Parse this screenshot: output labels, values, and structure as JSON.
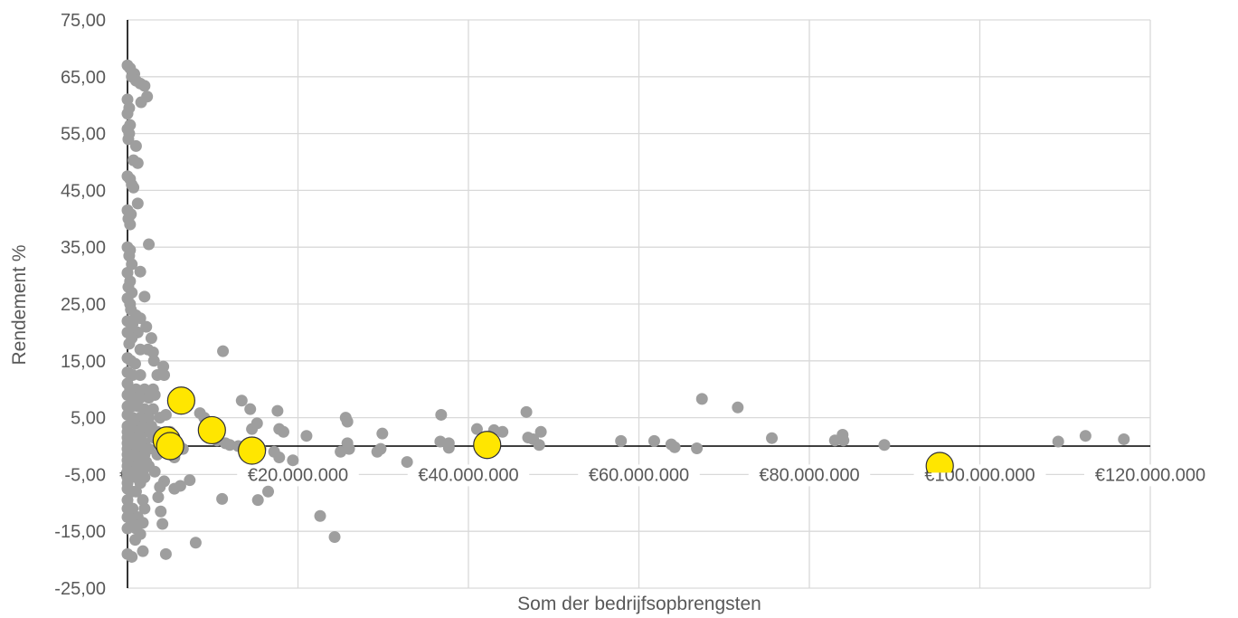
{
  "chart_data": {
    "type": "scatter",
    "title": "",
    "xlabel": "Som der bedrijfsopbrengsten",
    "ylabel": "Rendement %",
    "xlim": [
      0,
      120000000
    ],
    "ylim": [
      -25,
      75
    ],
    "x_ticks": [
      0,
      20000000,
      40000000,
      60000000,
      80000000,
      100000000,
      120000000
    ],
    "x_tick_labels": [
      "€-",
      "€20.000.000",
      "€40.000.000",
      "€60.000.000",
      "€80.000.000",
      "€100.000.000",
      "€120.000.000"
    ],
    "y_ticks": [
      -25,
      -15,
      -5,
      5,
      15,
      25,
      35,
      45,
      55,
      65,
      75
    ],
    "y_tick_labels": [
      "-25,00",
      "-15,00",
      "-5,00",
      "5,00",
      "15,00",
      "25,00",
      "35,00",
      "45,00",
      "55,00",
      "65,00",
      "75,00"
    ],
    "grid": true,
    "legend": "none",
    "colors": {
      "series_gray": "#9e9e9e",
      "highlight": "#ffe600",
      "highlight_stroke": "#2e2e38",
      "grid": "#d9d9d9",
      "axis": "#000000"
    },
    "series": [
      {
        "color": "#9e9e9e",
        "points": [
          [
            0,
            67
          ],
          [
            300000,
            66.5
          ],
          [
            800000,
            65.5
          ],
          [
            500000,
            65
          ],
          [
            1000000,
            64.3
          ],
          [
            1500000,
            63.8
          ],
          [
            2000000,
            63.4
          ],
          [
            2300000,
            61.5
          ],
          [
            1600000,
            60.5
          ],
          [
            0,
            61
          ],
          [
            200000,
            59.5
          ],
          [
            0,
            58.5
          ],
          [
            300000,
            56.5
          ],
          [
            0,
            55.8
          ],
          [
            200000,
            55
          ],
          [
            100000,
            54
          ],
          [
            1000000,
            52.8
          ],
          [
            700000,
            50.3
          ],
          [
            1200000,
            49.8
          ],
          [
            0,
            47.5
          ],
          [
            300000,
            47
          ],
          [
            500000,
            46
          ],
          [
            700000,
            45.5
          ],
          [
            1200000,
            42.7
          ],
          [
            0,
            41.5
          ],
          [
            400000,
            40.8
          ],
          [
            100000,
            40
          ],
          [
            300000,
            39
          ],
          [
            2500000,
            35.5
          ],
          [
            0,
            35
          ],
          [
            300000,
            34.5
          ],
          [
            200000,
            33.5
          ],
          [
            500000,
            32
          ],
          [
            1500000,
            30.7
          ],
          [
            0,
            30.5
          ],
          [
            300000,
            29
          ],
          [
            100000,
            28
          ],
          [
            500000,
            27
          ],
          [
            2000000,
            26.3
          ],
          [
            0,
            26
          ],
          [
            300000,
            25
          ],
          [
            400000,
            24
          ],
          [
            1000000,
            23
          ],
          [
            1500000,
            22.5
          ],
          [
            0,
            22
          ],
          [
            600000,
            21.5
          ],
          [
            2200000,
            21
          ],
          [
            1200000,
            20
          ],
          [
            0,
            20
          ],
          [
            500000,
            19
          ],
          [
            2800000,
            19
          ],
          [
            200000,
            18
          ],
          [
            1500000,
            17
          ],
          [
            2400000,
            17
          ],
          [
            3000000,
            16.5
          ],
          [
            0,
            15.5
          ],
          [
            400000,
            15
          ],
          [
            900000,
            14.5
          ],
          [
            3100000,
            15
          ],
          [
            0,
            13
          ],
          [
            600000,
            12.5
          ],
          [
            1500000,
            12.5
          ],
          [
            3500000,
            12.5
          ],
          [
            4300000,
            12.5
          ],
          [
            4200000,
            14
          ],
          [
            0,
            11
          ],
          [
            300000,
            10
          ],
          [
            1000000,
            10
          ],
          [
            2000000,
            10
          ],
          [
            3000000,
            10
          ],
          [
            0,
            9
          ],
          [
            700000,
            8.5
          ],
          [
            1500000,
            8.5
          ],
          [
            2500000,
            8.5
          ],
          [
            3200000,
            9
          ],
          [
            0,
            7
          ],
          [
            500000,
            7
          ],
          [
            1200000,
            7
          ],
          [
            2000000,
            6.5
          ],
          [
            3000000,
            6.5
          ],
          [
            0,
            5.5
          ],
          [
            600000,
            5
          ],
          [
            1500000,
            5
          ],
          [
            2500000,
            5
          ],
          [
            3800000,
            5
          ],
          [
            4500000,
            5.5
          ],
          [
            0,
            3.5
          ],
          [
            800000,
            3.5
          ],
          [
            1800000,
            3.5
          ],
          [
            2800000,
            3.5
          ],
          [
            0,
            2.5
          ],
          [
            1000000,
            2.5
          ],
          [
            2200000,
            2.5
          ],
          [
            3500000,
            2.5
          ],
          [
            5000000,
            2.5
          ],
          [
            0,
            1.5
          ],
          [
            600000,
            1.5
          ],
          [
            1500000,
            1.5
          ],
          [
            3000000,
            1.5
          ],
          [
            4500000,
            1.5
          ],
          [
            5500000,
            1.2
          ],
          [
            0,
            0.5
          ],
          [
            1000000,
            0.5
          ],
          [
            2000000,
            0.5
          ],
          [
            3800000,
            0.5
          ],
          [
            6000000,
            0.3
          ],
          [
            0,
            -0.5
          ],
          [
            1200000,
            -0.5
          ],
          [
            2500000,
            -0.5
          ],
          [
            4200000,
            -0.7
          ],
          [
            6500000,
            -0.5
          ],
          [
            0,
            -1.5
          ],
          [
            800000,
            -1.5
          ],
          [
            2000000,
            -1.5
          ],
          [
            3500000,
            -1.5
          ],
          [
            0,
            -2.5
          ],
          [
            1000000,
            -2.5
          ],
          [
            2200000,
            -2.8
          ],
          [
            5500000,
            -2
          ],
          [
            0,
            -3.5
          ],
          [
            1200000,
            -3.5
          ],
          [
            2500000,
            -3.5
          ],
          [
            0,
            -4.5
          ],
          [
            800000,
            -4.5
          ],
          [
            1800000,
            -4.5
          ],
          [
            3200000,
            -4.5
          ],
          [
            0,
            -5.5
          ],
          [
            1000000,
            -5.5
          ],
          [
            2000000,
            -5.5
          ],
          [
            0,
            -6.5
          ],
          [
            1500000,
            -6.5
          ],
          [
            4300000,
            -6.2
          ],
          [
            3800000,
            -7.2
          ],
          [
            5500000,
            -7.5
          ],
          [
            6200000,
            -7
          ],
          [
            7300000,
            -6
          ],
          [
            0,
            -7.5
          ],
          [
            500000,
            -8
          ],
          [
            1000000,
            -8
          ],
          [
            3600000,
            -9
          ],
          [
            0,
            -9.5
          ],
          [
            1800000,
            -9.5
          ],
          [
            0,
            -11
          ],
          [
            600000,
            -11
          ],
          [
            2000000,
            -11
          ],
          [
            3900000,
            -11.5
          ],
          [
            4100000,
            -13.7
          ],
          [
            0,
            -12.5
          ],
          [
            1200000,
            -12.5
          ],
          [
            500000,
            -13.5
          ],
          [
            1800000,
            -13.5
          ],
          [
            0,
            -14.5
          ],
          [
            1000000,
            -14.5
          ],
          [
            1500000,
            -15.5
          ],
          [
            900000,
            -16.5
          ],
          [
            1800000,
            -18.5
          ],
          [
            0,
            -19
          ],
          [
            500000,
            -19.5
          ],
          [
            4500000,
            -19
          ],
          [
            8000000,
            -17
          ],
          [
            8500000,
            5.8
          ],
          [
            9000000,
            5
          ],
          [
            9500000,
            3
          ],
          [
            10000000,
            2
          ],
          [
            10500000,
            1
          ],
          [
            11500000,
            0.5
          ],
          [
            12000000,
            0.2
          ],
          [
            13000000,
            0
          ],
          [
            11200000,
            16.7
          ],
          [
            13400000,
            8
          ],
          [
            14400000,
            6.5
          ],
          [
            14600000,
            3
          ],
          [
            15200000,
            4
          ],
          [
            15600000,
            -0.5
          ],
          [
            17800000,
            3
          ],
          [
            17600000,
            6.2
          ],
          [
            18300000,
            2.5
          ],
          [
            17200000,
            -1
          ],
          [
            17800000,
            -2
          ],
          [
            19400000,
            -2.5
          ],
          [
            16500000,
            -8
          ],
          [
            15300000,
            -9.5
          ],
          [
            11100000,
            -9.3
          ],
          [
            21000000,
            1.8
          ],
          [
            22600000,
            -12.3
          ],
          [
            24300000,
            -16
          ],
          [
            25000000,
            -1
          ],
          [
            25600000,
            5
          ],
          [
            25800000,
            4.3
          ],
          [
            25800000,
            0.5
          ],
          [
            26000000,
            -0.5
          ],
          [
            29300000,
            -1
          ],
          [
            29700000,
            -0.5
          ],
          [
            29900000,
            2.2
          ],
          [
            32800000,
            -2.8
          ],
          [
            36800000,
            5.5
          ],
          [
            36700000,
            0.8
          ],
          [
            37700000,
            0.5
          ],
          [
            37700000,
            -0.3
          ],
          [
            41000000,
            3
          ],
          [
            43000000,
            2.8
          ],
          [
            44000000,
            2.5
          ],
          [
            46800000,
            6
          ],
          [
            47000000,
            1.5
          ],
          [
            47600000,
            1.2
          ],
          [
            48500000,
            2.5
          ],
          [
            48300000,
            0.2
          ],
          [
            57900000,
            0.9
          ],
          [
            61800000,
            0.9
          ],
          [
            63800000,
            0.3
          ],
          [
            64200000,
            -0.2
          ],
          [
            66800000,
            -0.4
          ],
          [
            67400000,
            8.3
          ],
          [
            71600000,
            6.8
          ],
          [
            75600000,
            1.4
          ],
          [
            83000000,
            1
          ],
          [
            83900000,
            2
          ],
          [
            84000000,
            1
          ],
          [
            88800000,
            0.2
          ],
          [
            109200000,
            0.8
          ],
          [
            112400000,
            1.8
          ],
          [
            116900000,
            1.2
          ]
        ]
      },
      {
        "color": "#ffe600",
        "points": [
          [
            6300000,
            8
          ],
          [
            9900000,
            2.8
          ],
          [
            4600000,
            1
          ],
          [
            5000000,
            0
          ],
          [
            14600000,
            -0.8
          ],
          [
            42200000,
            0.2
          ],
          [
            95300000,
            -3.5
          ]
        ]
      }
    ]
  }
}
